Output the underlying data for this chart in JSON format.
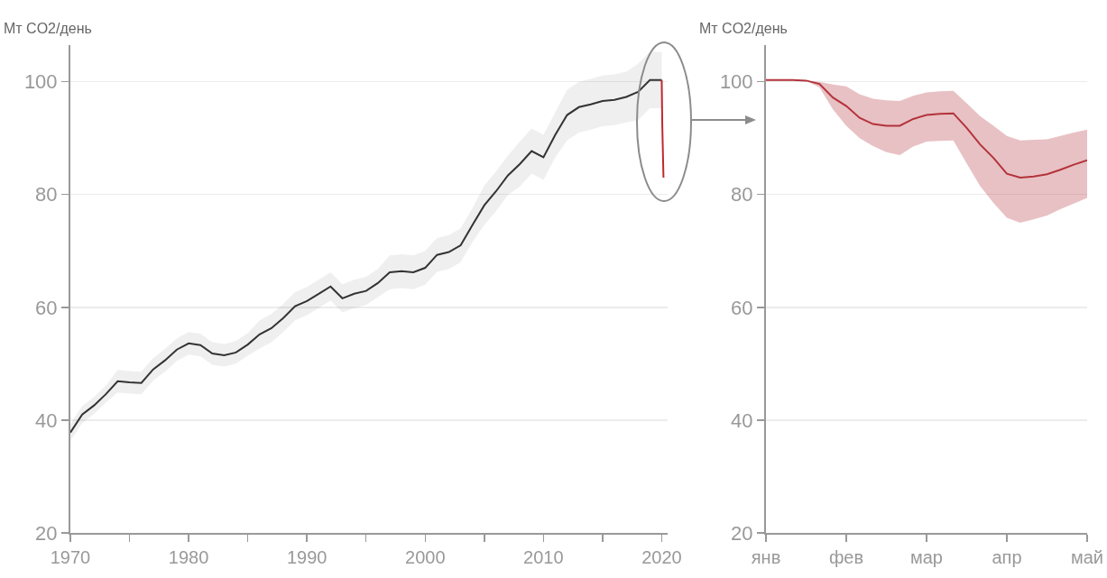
{
  "chart_data": [
    {
      "type": "line",
      "ylabel": "Мт CO2/день",
      "xlim": [
        1970,
        2020.5
      ],
      "ylim": [
        20,
        106.5
      ],
      "xticks": [
        1970,
        {
          "value": 1975,
          "label": null
        },
        1980,
        {
          "value": 1985,
          "label": null
        },
        1990,
        {
          "value": 1995,
          "label": null
        },
        2000,
        {
          "value": 2005,
          "label": null
        },
        2010,
        {
          "value": 2015,
          "label": null
        },
        2020
      ],
      "yticks": [
        20,
        40,
        60,
        80,
        100
      ],
      "grid": "y",
      "series": [
        {
          "color": "#333333",
          "x": [
            1970,
            1971,
            1972,
            1973,
            1974,
            1975,
            1976,
            1977,
            1978,
            1979,
            1980,
            1981,
            1982,
            1983,
            1984,
            1985,
            1986,
            1987,
            1988,
            1989,
            1990,
            1991,
            1992,
            1993,
            1994,
            1995,
            1996,
            1997,
            1998,
            1999,
            2000,
            2001,
            2002,
            2003,
            2004,
            2005,
            2006,
            2007,
            2008,
            2009,
            2010,
            2011,
            2012,
            2013,
            2014,
            2015,
            2016,
            2017,
            2018,
            2019,
            2020
          ],
          "values": [
            37.8,
            41.0,
            42.6,
            44.6,
            46.9,
            46.7,
            46.6,
            49.0,
            50.6,
            52.5,
            53.6,
            53.3,
            51.8,
            51.5,
            52.0,
            53.4,
            55.2,
            56.3,
            58.1,
            60.2,
            61.1,
            62.4,
            63.7,
            61.6,
            62.4,
            62.9,
            64.3,
            66.2,
            66.4,
            66.2,
            67.0,
            69.3,
            69.8,
            71.0,
            74.6,
            78.1,
            80.6,
            83.4,
            85.4,
            87.7,
            86.6,
            90.6,
            94.1,
            95.5,
            96.0,
            96.6,
            96.8,
            97.3,
            98.2,
            100.3,
            100.3
          ],
          "lower": [
            36.3,
            39.5,
            41.1,
            43.1,
            44.9,
            44.7,
            44.6,
            47.0,
            48.6,
            50.5,
            51.6,
            51.3,
            49.8,
            49.5,
            50.0,
            51.4,
            52.7,
            53.8,
            55.6,
            57.7,
            58.6,
            59.9,
            61.2,
            59.1,
            59.9,
            60.4,
            61.8,
            63.2,
            63.4,
            63.2,
            64.0,
            66.3,
            66.8,
            68.0,
            71.6,
            74.6,
            77.1,
            79.9,
            81.4,
            83.7,
            82.6,
            86.6,
            89.6,
            91.0,
            91.5,
            92.1,
            92.3,
            92.8,
            93.2,
            95.3,
            95.3
          ],
          "upper": [
            39.3,
            42.5,
            44.1,
            46.1,
            48.9,
            48.7,
            48.6,
            51.0,
            52.6,
            54.5,
            55.6,
            55.3,
            53.8,
            53.5,
            54.0,
            55.4,
            57.7,
            58.8,
            60.6,
            62.7,
            63.6,
            64.9,
            66.2,
            64.1,
            64.9,
            65.4,
            66.8,
            69.2,
            69.4,
            69.2,
            70.0,
            72.3,
            72.8,
            74.0,
            77.6,
            81.6,
            84.1,
            86.9,
            89.4,
            91.7,
            90.6,
            94.6,
            98.6,
            100.0,
            100.5,
            101.1,
            101.3,
            101.8,
            103.2,
            105.3,
            105.3
          ]
        },
        {
          "color": "#c0282d",
          "x": [
            2020.0,
            2020.05,
            2020.15
          ],
          "values": [
            100.3,
            92.2,
            83.0
          ]
        }
      ]
    },
    {
      "type": "line",
      "ylabel": "Мт CO2/день",
      "ylim": [
        20,
        106.5
      ],
      "yticks": [
        20,
        40,
        60,
        80,
        100
      ],
      "grid": "y",
      "categories": [
        "янв",
        null,
        null,
        null,
        null,
        null,
        "фев",
        null,
        null,
        null,
        null,
        null,
        "мар",
        null,
        null,
        null,
        null,
        null,
        "апр",
        null,
        null,
        null,
        null,
        null,
        "май"
      ],
      "series": [
        {
          "color": "#b3333a",
          "values": [
            100.3,
            100.3,
            100.3,
            100.2,
            99.6,
            97.2,
            95.7,
            93.6,
            92.5,
            92.2,
            92.2,
            93.4,
            94.1,
            94.3,
            94.4,
            91.8,
            88.9,
            86.5,
            83.7,
            83.0,
            83.2,
            83.6,
            84.4,
            85.3,
            86.1
          ],
          "lower": [
            100.3,
            100.3,
            100.3,
            100.2,
            99.0,
            95.1,
            92.2,
            90.0,
            88.6,
            87.5,
            87.0,
            88.5,
            89.4,
            89.5,
            89.6,
            85.5,
            81.5,
            78.5,
            75.9,
            75.0,
            75.6,
            76.3,
            77.4,
            78.4,
            79.4
          ],
          "upper": [
            100.3,
            100.3,
            100.3,
            100.2,
            100.0,
            99.5,
            99.2,
            97.8,
            97.0,
            96.7,
            96.6,
            97.5,
            98.1,
            98.3,
            98.4,
            96.2,
            93.9,
            92.2,
            90.4,
            89.6,
            89.7,
            89.8,
            90.4,
            91.0,
            91.5
          ]
        }
      ]
    }
  ]
}
